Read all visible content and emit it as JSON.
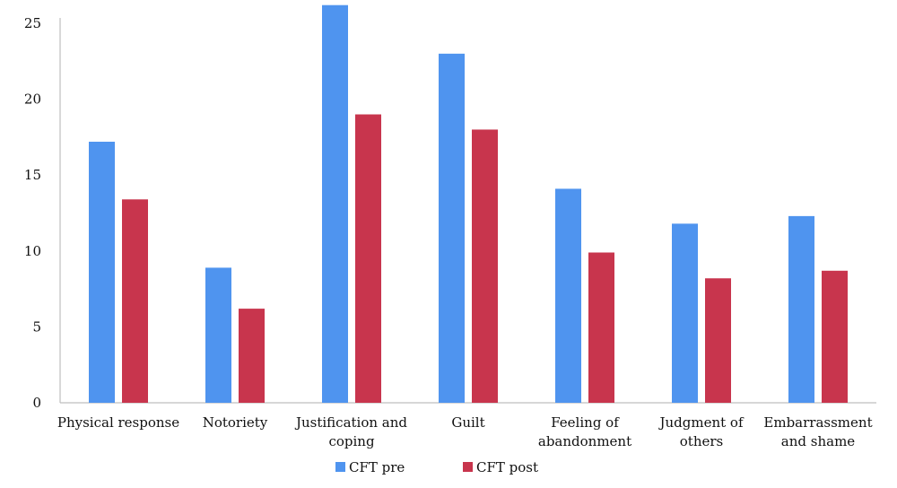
{
  "chart_data": {
    "type": "bar",
    "categories": [
      "Physical response",
      "Notoriety",
      "Justification and coping",
      "Guilt",
      "Feeling of abandonment",
      "Judgment of others",
      "Embarrassment and shame"
    ],
    "category_lines": [
      [
        "Physical response"
      ],
      [
        "Notoriety"
      ],
      [
        "Justification and",
        "coping"
      ],
      [
        "Guilt"
      ],
      [
        "Feeling of",
        "abandonment"
      ],
      [
        "Judgment of",
        "others"
      ],
      [
        "Embarrassment",
        "and shame"
      ]
    ],
    "series": [
      {
        "name": "CFT pre",
        "color": "#4f94ef",
        "values": [
          17.2,
          8.9,
          26.2,
          23.0,
          14.1,
          11.8,
          12.3
        ]
      },
      {
        "name": "CFT post",
        "color": "#c8354d",
        "values": [
          13.4,
          6.2,
          19.0,
          18.0,
          9.9,
          8.2,
          8.7
        ]
      }
    ],
    "ylim": [
      0,
      25
    ],
    "yticks": [
      0,
      5,
      10,
      15,
      20,
      25
    ],
    "grid": false,
    "legend_position": "bottom-center",
    "title": "",
    "xlabel": "",
    "ylabel": ""
  }
}
